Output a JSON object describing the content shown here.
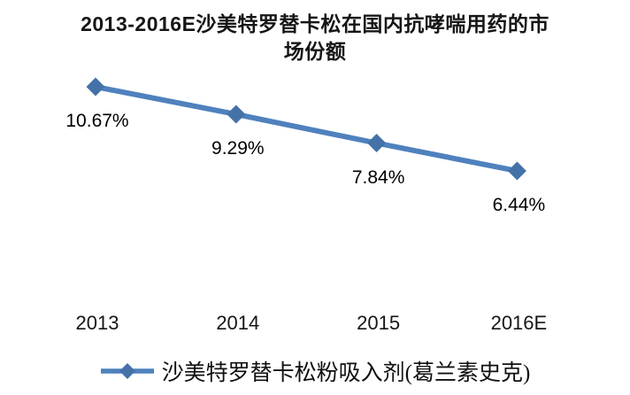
{
  "window": {
    "background": "#ffffff"
  },
  "chart_data": {
    "type": "line",
    "title": "2013-2016E沙美特罗替卡松在国内抗哮喘用药的市场份额",
    "title_lines": [
      "2013-2016E沙美特罗替卡松在国内抗哮喘用药的市",
      "场份额"
    ],
    "categories": [
      "2013",
      "2014",
      "2015",
      "2016E"
    ],
    "series": [
      {
        "name": "沙美特罗替卡松粉吸入剂(葛兰素史克)",
        "values": [
          10.67,
          9.29,
          7.84,
          6.44
        ],
        "data_labels": [
          "10.67%",
          "9.29%",
          "7.84%",
          "6.44%"
        ],
        "line_color": "#4F81BD",
        "marker": "diamond",
        "marker_color": "#4472A8"
      }
    ],
    "unit": "%",
    "ylim": [
      0,
      12
    ],
    "grid": false,
    "x_axis_visible": false,
    "y_axis_visible": false,
    "legend_position": "bottom",
    "data_labels_position": "below"
  }
}
